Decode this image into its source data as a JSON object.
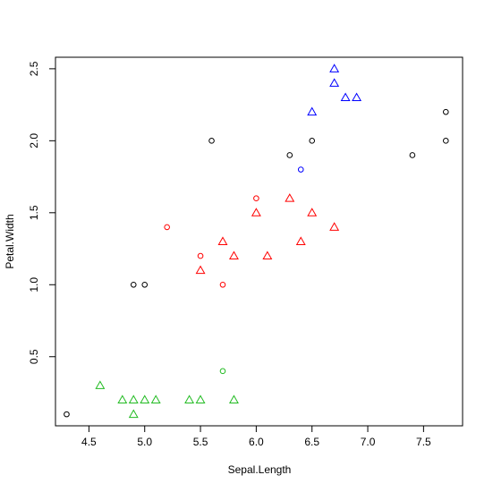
{
  "chart_data": {
    "type": "scatter",
    "title": "",
    "xlabel": "Sepal.Length",
    "ylabel": "Petal.Width",
    "xlim": [
      4.2,
      7.85
    ],
    "ylim": [
      0.02,
      2.58
    ],
    "xticks": [
      "4.5",
      "5.0",
      "5.5",
      "6.0",
      "6.5",
      "7.0",
      "7.5"
    ],
    "yticks": [
      "0.5",
      "1.0",
      "1.5",
      "2.0",
      "2.5"
    ],
    "grid": false,
    "series": [
      {
        "color": "#000000",
        "marker": "circle",
        "points": [
          [
            4.3,
            0.1
          ],
          [
            4.9,
            1.0
          ],
          [
            5.0,
            1.0
          ],
          [
            5.6,
            2.0
          ],
          [
            6.3,
            1.9
          ],
          [
            6.5,
            2.0
          ],
          [
            7.4,
            1.9
          ],
          [
            7.7,
            2.2
          ],
          [
            7.7,
            2.0
          ]
        ]
      },
      {
        "color": "#22BB22",
        "marker": "triangle",
        "points": [
          [
            4.6,
            0.3
          ],
          [
            4.8,
            0.2
          ],
          [
            4.9,
            0.2
          ],
          [
            4.9,
            0.1
          ],
          [
            5.0,
            0.2
          ],
          [
            5.1,
            0.2
          ],
          [
            5.4,
            0.2
          ],
          [
            5.5,
            0.2
          ],
          [
            5.8,
            0.2
          ]
        ]
      },
      {
        "color": "#22BB22",
        "marker": "circle",
        "points": [
          [
            5.7,
            0.4
          ]
        ]
      },
      {
        "color": "#FF0000",
        "marker": "circle",
        "points": [
          [
            5.2,
            1.4
          ],
          [
            5.5,
            1.2
          ],
          [
            5.7,
            1.0
          ],
          [
            6.0,
            1.6
          ]
        ]
      },
      {
        "color": "#FF0000",
        "marker": "triangle",
        "points": [
          [
            5.5,
            1.1
          ],
          [
            5.7,
            1.3
          ],
          [
            5.8,
            1.2
          ],
          [
            6.0,
            1.5
          ],
          [
            6.1,
            1.2
          ],
          [
            6.3,
            1.6
          ],
          [
            6.4,
            1.3
          ],
          [
            6.5,
            1.5
          ],
          [
            6.7,
            1.4
          ]
        ]
      },
      {
        "color": "#0000FF",
        "marker": "circle",
        "points": [
          [
            6.4,
            1.8
          ]
        ]
      },
      {
        "color": "#0000FF",
        "marker": "triangle",
        "points": [
          [
            6.5,
            2.2
          ],
          [
            6.7,
            2.5
          ],
          [
            6.7,
            2.4
          ],
          [
            6.8,
            2.3
          ],
          [
            6.9,
            2.3
          ]
        ]
      }
    ]
  }
}
